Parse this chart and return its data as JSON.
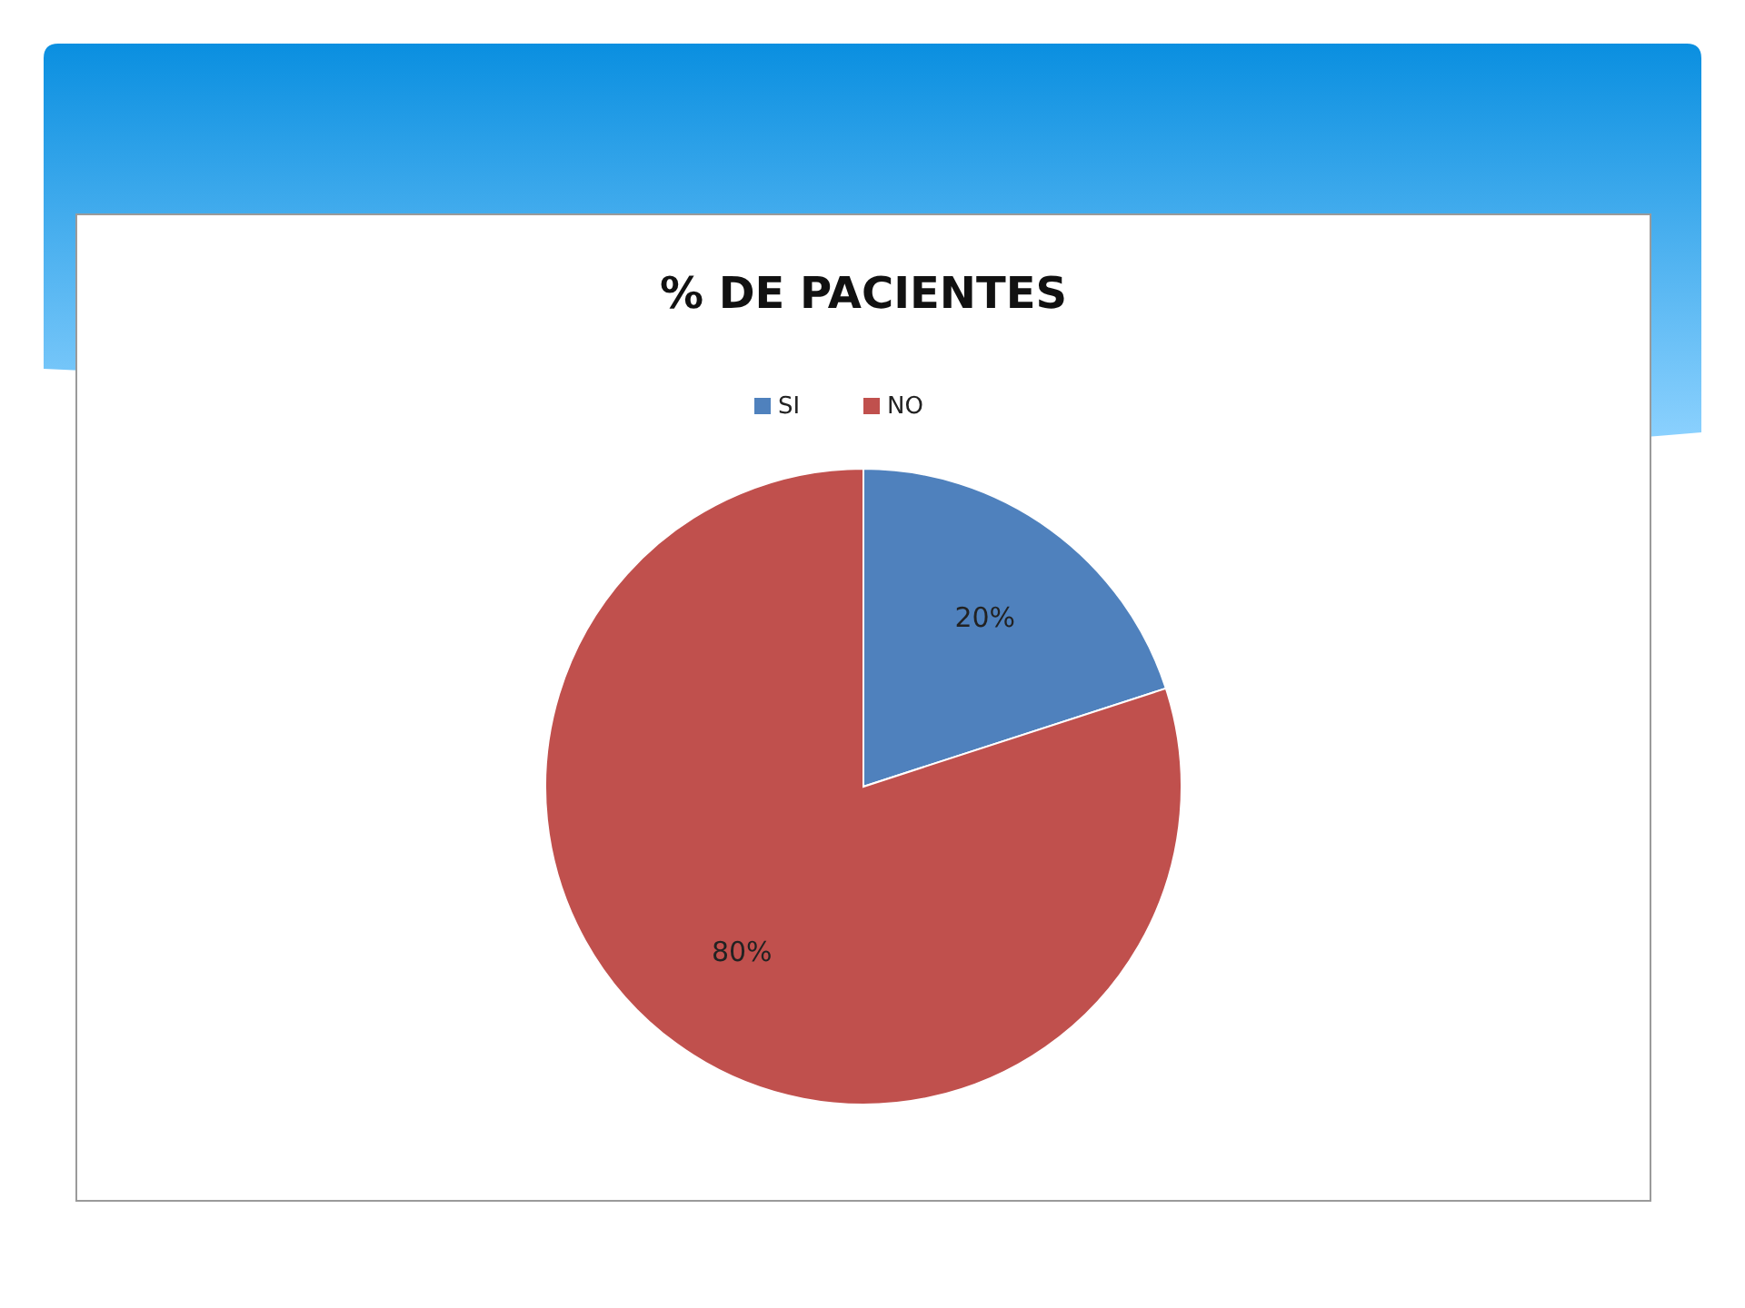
{
  "chart_data": {
    "type": "pie",
    "title": "% DE PACIENTES",
    "categories": [
      "SI",
      "NO"
    ],
    "values": [
      20,
      80
    ],
    "colors": [
      "#4f81bd",
      "#c0504d"
    ],
    "value_labels": [
      "20%",
      "80%"
    ],
    "legend": "top"
  }
}
